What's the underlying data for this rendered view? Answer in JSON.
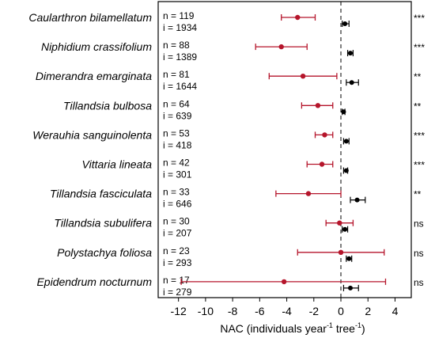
{
  "chart_data": {
    "type": "forest",
    "x_axis": {
      "label_main": "NAC (individuals year",
      "label_sup1": "-1",
      "label_mid": " tree",
      "label_sup2": "-1",
      "label_end": ")",
      "min": -13.5,
      "max": 5.2,
      "ticks": [
        -12,
        -10,
        -8,
        -6,
        -4,
        -2,
        0,
        2,
        4
      ],
      "reference_line": 0
    },
    "colors": {
      "red": "#b5152b",
      "black": "#000000"
    },
    "rows": [
      {
        "species": "Caularthron bilamellatum",
        "n_label": "n = 119",
        "i_label": "i = 1934",
        "red": {
          "mean": -3.2,
          "lo": -4.4,
          "hi": -1.9
        },
        "black": {
          "mean": 0.3,
          "lo": 0.1,
          "hi": 0.6
        },
        "sig": "***"
      },
      {
        "species": "Niphidium crassifolium",
        "n_label": "n = 88",
        "i_label": "i = 1389",
        "red": {
          "mean": -4.4,
          "lo": -6.3,
          "hi": -2.5
        },
        "black": {
          "mean": 0.7,
          "lo": 0.5,
          "hi": 0.9
        },
        "sig": "***"
      },
      {
        "species": "Dimerandra emarginata",
        "n_label": "n = 81",
        "i_label": "i = 1644",
        "red": {
          "mean": -2.8,
          "lo": -5.3,
          "hi": -0.3
        },
        "black": {
          "mean": 0.8,
          "lo": 0.4,
          "hi": 1.3
        },
        "sig": "**"
      },
      {
        "species": "Tillandsia bulbosa",
        "n_label": "n = 64",
        "i_label": "i = 639",
        "red": {
          "mean": -1.7,
          "lo": -2.9,
          "hi": -0.6
        },
        "black": {
          "mean": 0.2,
          "lo": 0.1,
          "hi": 0.3
        },
        "sig": "**"
      },
      {
        "species": "Werauhia sanguinolenta",
        "n_label": "n = 53",
        "i_label": "i = 418",
        "red": {
          "mean": -1.2,
          "lo": -1.9,
          "hi": -0.6
        },
        "black": {
          "mean": 0.4,
          "lo": 0.2,
          "hi": 0.6
        },
        "sig": "***"
      },
      {
        "species": "Vittaria lineata",
        "n_label": "n = 42",
        "i_label": "i = 301",
        "red": {
          "mean": -1.4,
          "lo": -2.5,
          "hi": -0.6
        },
        "black": {
          "mean": 0.4,
          "lo": 0.2,
          "hi": 0.5
        },
        "sig": "***"
      },
      {
        "species": "Tillandsia fasciculata",
        "n_label": "n = 33",
        "i_label": "i = 646",
        "red": {
          "mean": -2.4,
          "lo": -4.8,
          "hi": 0.0
        },
        "black": {
          "mean": 1.2,
          "lo": 0.7,
          "hi": 1.8
        },
        "sig": "**"
      },
      {
        "species": "Tillandsia subulifera",
        "n_label": "n = 30",
        "i_label": "i = 207",
        "red": {
          "mean": -0.1,
          "lo": -1.1,
          "hi": 0.9
        },
        "black": {
          "mean": 0.3,
          "lo": 0.1,
          "hi": 0.5
        },
        "sig": "ns"
      },
      {
        "species": "Polystachya foliosa",
        "n_label": "n = 23",
        "i_label": "i = 293",
        "red": {
          "mean": 0.0,
          "lo": -3.2,
          "hi": 3.2
        },
        "black": {
          "mean": 0.6,
          "lo": 0.4,
          "hi": 0.8
        },
        "sig": "ns"
      },
      {
        "species": "Epidendrum nocturnum",
        "n_label": "n = 17",
        "i_label": "i = 279",
        "red": {
          "mean": -4.2,
          "lo": -11.8,
          "hi": 3.3
        },
        "black": {
          "mean": 0.7,
          "lo": 0.2,
          "hi": 1.3
        },
        "sig": "ns"
      }
    ]
  }
}
